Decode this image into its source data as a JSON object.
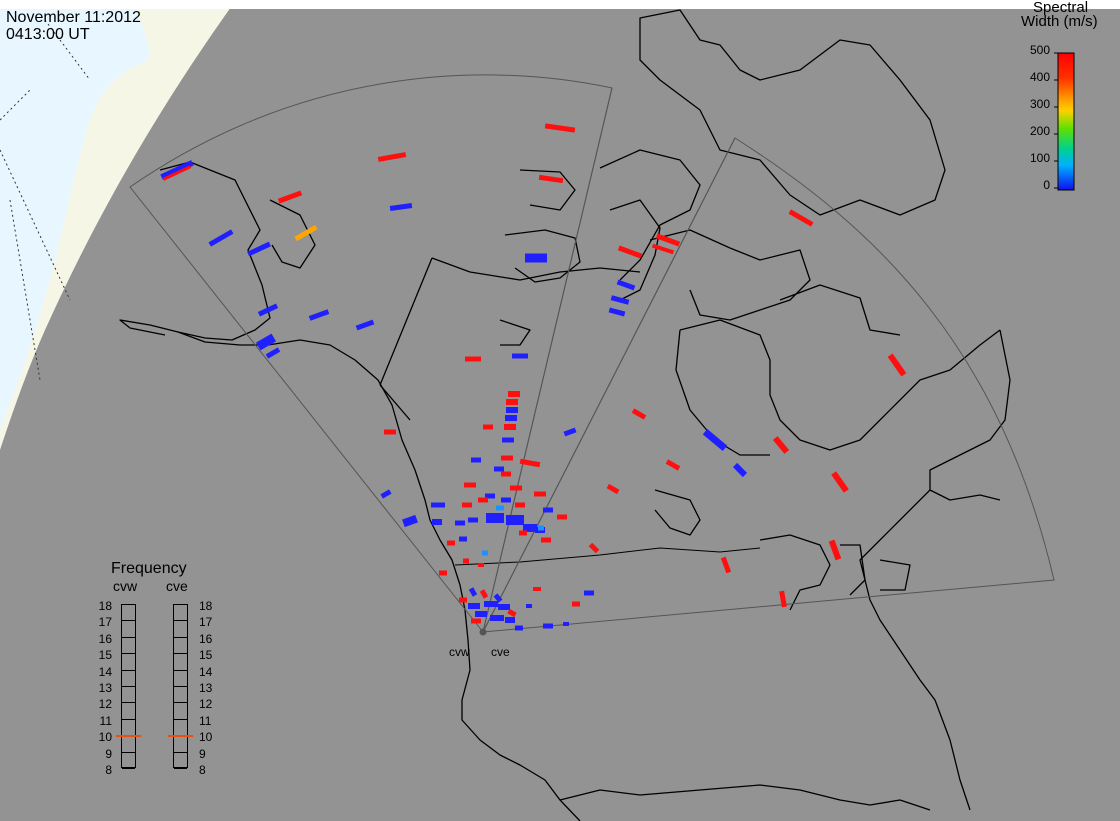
{
  "header": {
    "date": "November 11:2012",
    "time": "0413:00 UT"
  },
  "colorbar": {
    "title_line1": "Spectral",
    "title_line2": "Width (m/s)",
    "ticks": [
      "500",
      "400",
      "300",
      "200",
      "100",
      "0"
    ],
    "colors": [
      "#ff0000",
      "#ff8000",
      "#ffd000",
      "#40e000",
      "#00d0d0",
      "#0040ff",
      "#2010f0"
    ]
  },
  "frequency_panel": {
    "title": "Frequency",
    "radar_left": "cvw",
    "radar_right": "cve",
    "levels": [
      "18",
      "17",
      "16",
      "15",
      "14",
      "13",
      "12",
      "11",
      "10",
      "9",
      "8"
    ],
    "selected_left_mhz": 10.5,
    "selected_right_mhz": 10.5,
    "selected_color": "#e85010"
  },
  "radars": {
    "west_label": "cvw",
    "east_label": "cve"
  },
  "colors": {
    "background": "#939393",
    "ocean_visible": "#e8f6ff",
    "terminator_band": "#f6f6e6",
    "coastline": "#000000",
    "fov_outline": "#555555",
    "scatter_high": "#ff1010",
    "scatter_low": "#2020ff",
    "scatter_mid_blue": "#1e90ff",
    "scatter_orange": "#ffa500"
  }
}
